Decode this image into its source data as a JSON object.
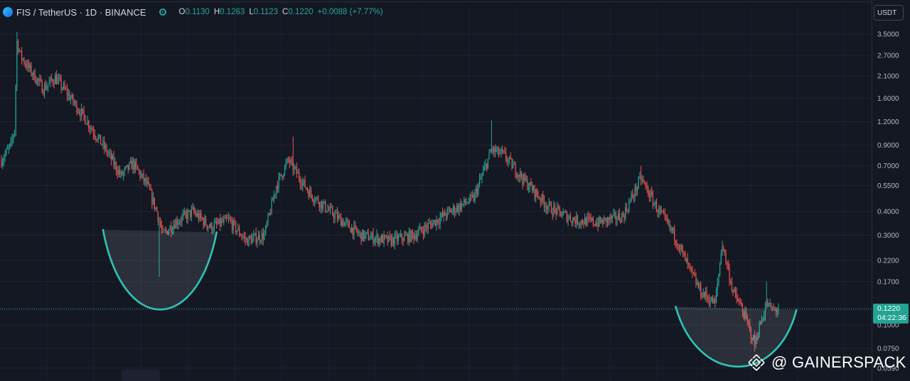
{
  "header": {
    "symbol": "FIS / TetherUS · 1D · BINANCE",
    "open_label": "O",
    "open": "0.1130",
    "high_label": "H",
    "high": "0.1263",
    "low_label": "L",
    "low": "0.1123",
    "close_label": "C",
    "close": "0.1220",
    "change": "+0.0088 (+7.77%)"
  },
  "currency_button": "USDT",
  "last_price": {
    "price": "0.1220",
    "countdown": "04:22:36"
  },
  "watermark": "@ GAINERSPACK",
  "colors": {
    "background": "#141823",
    "up": "#26a69a",
    "down": "#ef5350",
    "cup": "#2ec4b6",
    "axis_text": "#b2b5be"
  },
  "chart_data": {
    "type": "candlestick",
    "scale": "log",
    "grid": true,
    "y_ticks": [
      3.5,
      2.7,
      2.1,
      1.6,
      1.2,
      0.9,
      0.7,
      0.55,
      0.4,
      0.3,
      0.22,
      0.17,
      0.12,
      0.1,
      0.075,
      0.059
    ],
    "y_tick_labels": [
      "3.5000",
      "2.7000",
      "2.1000",
      "1.6000",
      "1.2000",
      "0.9000",
      "0.7000",
      "0.5500",
      "0.4000",
      "0.3000",
      "0.2200",
      "0.1700",
      "0.1200",
      "0.1000",
      "0.0750",
      "0.0590"
    ],
    "ylim": [
      0.057,
      4.0
    ],
    "bar_count": 540,
    "price_path": [
      [
        0,
        0.75
      ],
      [
        8,
        0.9
      ],
      [
        11,
        1.1
      ],
      [
        13,
        3.2
      ],
      [
        16,
        2.7
      ],
      [
        22,
        2.35
      ],
      [
        35,
        1.8
      ],
      [
        45,
        2.05
      ],
      [
        55,
        1.7
      ],
      [
        70,
        1.25
      ],
      [
        90,
        0.8
      ],
      [
        100,
        0.62
      ],
      [
        110,
        0.72
      ],
      [
        122,
        0.55
      ],
      [
        130,
        0.4
      ],
      [
        135,
        0.3
      ],
      [
        145,
        0.35
      ],
      [
        160,
        0.4
      ],
      [
        175,
        0.33
      ],
      [
        190,
        0.36
      ],
      [
        205,
        0.28
      ],
      [
        220,
        0.3
      ],
      [
        230,
        0.55
      ],
      [
        240,
        0.75
      ],
      [
        258,
        0.5
      ],
      [
        275,
        0.4
      ],
      [
        300,
        0.3
      ],
      [
        325,
        0.28
      ],
      [
        345,
        0.3
      ],
      [
        375,
        0.4
      ],
      [
        395,
        0.47
      ],
      [
        410,
        0.85
      ],
      [
        420,
        0.8
      ],
      [
        438,
        0.58
      ],
      [
        458,
        0.42
      ],
      [
        480,
        0.36
      ],
      [
        500,
        0.35
      ],
      [
        520,
        0.38
      ],
      [
        535,
        0.6
      ],
      [
        548,
        0.42
      ],
      [
        563,
        0.3
      ],
      [
        575,
        0.2
      ],
      [
        585,
        0.15
      ],
      [
        597,
        0.13
      ],
      [
        603,
        0.27
      ],
      [
        612,
        0.15
      ],
      [
        620,
        0.12
      ],
      [
        630,
        0.08
      ],
      [
        640,
        0.13
      ],
      [
        645,
        0.12
      ],
      [
        650,
        0.122
      ]
    ],
    "spikes": [
      {
        "x": 13,
        "high": 3.6
      },
      {
        "x": 132,
        "low": 0.18
      },
      {
        "x": 244,
        "high": 1.0
      },
      {
        "x": 410,
        "high": 1.22
      },
      {
        "x": 535,
        "high": 0.7
      },
      {
        "x": 603,
        "high": 0.28
      },
      {
        "x": 630,
        "low": 0.072
      },
      {
        "x": 640,
        "high": 0.17
      }
    ],
    "cup_patterns": [
      {
        "left_x": 85,
        "left_price": 0.32,
        "bottom_x": 132,
        "bottom_price": 0.12,
        "right_x": 180,
        "right_price": 0.31
      },
      {
        "left_x": 564,
        "left_price": 0.125,
        "bottom_x": 618,
        "bottom_price": 0.06,
        "right_x": 665,
        "right_price": 0.12
      }
    ],
    "last_price_value": 0.122
  }
}
